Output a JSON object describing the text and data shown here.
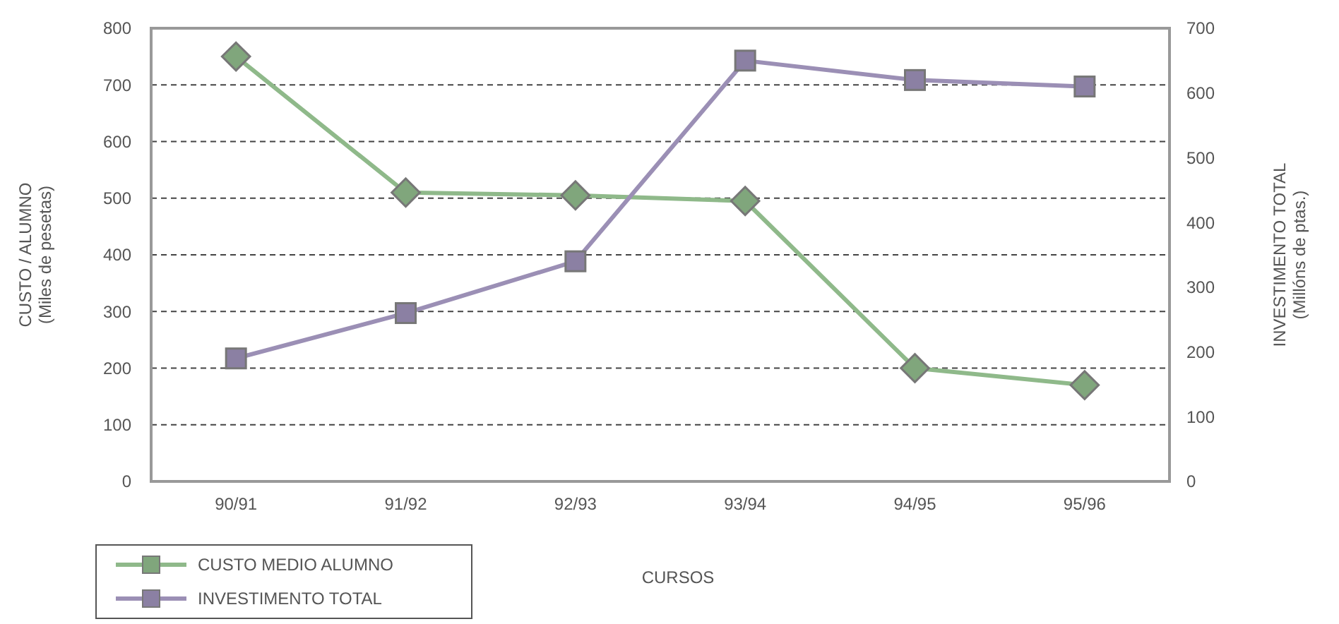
{
  "chart_data": {
    "type": "line",
    "xlabel": "CURSOS",
    "ylabel": "CUSTO / ALUMNO\n(Miles de pesetas)",
    "y2label": "INVESTIMENTO TOTAL\n(Millóns de ptas.)",
    "categories": [
      "90/91",
      "91/92",
      "92/93",
      "93/94",
      "94/95",
      "95/96"
    ],
    "series": [
      {
        "name": "CUSTO MEDIO ALUMNO",
        "color": "#8fb98a",
        "marker": "diamond",
        "values": [
          750,
          510,
          505,
          495,
          200,
          170
        ]
      },
      {
        "name": "INVESTIMENTO TOTAL",
        "color": "#9b8fb5",
        "marker": "square",
        "axis": "y2",
        "values": [
          190,
          260,
          340,
          650,
          620,
          610
        ]
      }
    ],
    "ylim": [
      0,
      800
    ],
    "yticks": [
      0,
      100,
      200,
      300,
      400,
      500,
      600,
      700,
      800
    ],
    "y2lim": [
      0,
      700
    ],
    "y2ticks": [
      0,
      100,
      200,
      300,
      400,
      500,
      600,
      700
    ],
    "grid": "y",
    "line_style": "solid",
    "legend": "bottom left"
  }
}
